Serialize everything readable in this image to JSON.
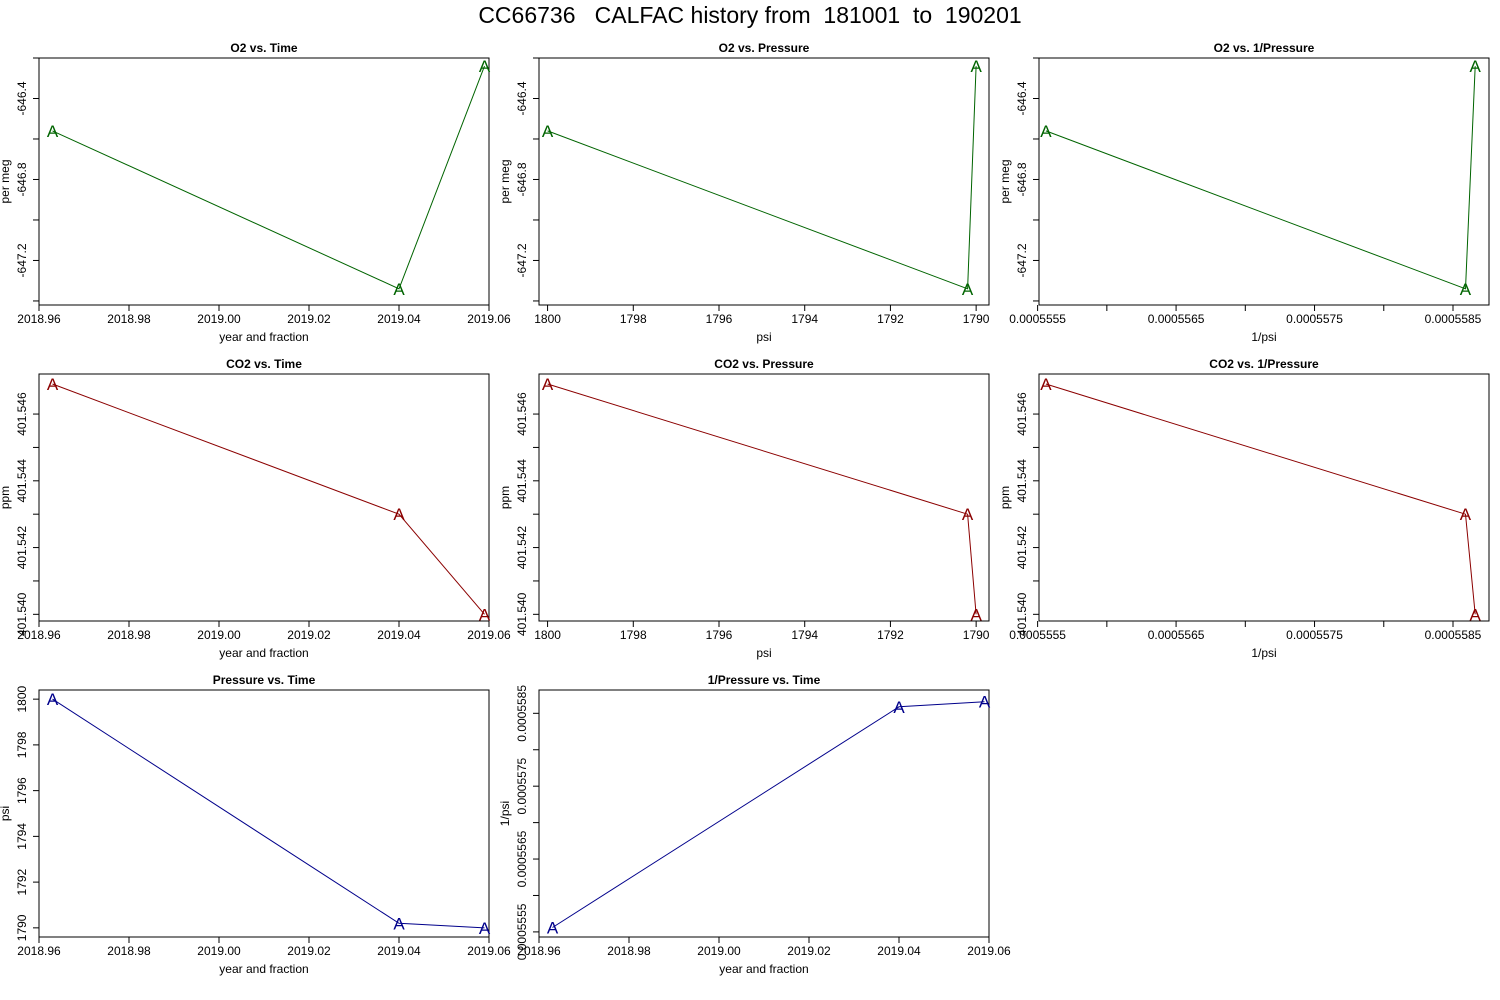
{
  "page": {
    "title": "CC66736   CALFAC history from  181001  to  190201"
  },
  "colors": {
    "o2": "#006400",
    "co2": "#8b0000",
    "pressure": "#00008b",
    "axis": "#000000"
  },
  "chart_data": [
    {
      "type": "line",
      "marker": "A",
      "color": "#006400",
      "title": "O2 vs. Time",
      "xlabel": "year and fraction",
      "ylabel": "per meg",
      "x": [
        2018.963,
        2019.04,
        2019.059
      ],
      "y": [
        -646.56,
        -647.34,
        -646.24
      ],
      "xlim": [
        2018.96,
        2019.06
      ],
      "ylim": [
        -647.42,
        -646.2
      ],
      "xticks": [
        2018.96,
        2018.98,
        2019.0,
        2019.02,
        2019.04,
        2019.06
      ],
      "xticklabels": [
        "2018.96",
        "2018.98",
        "2019.00",
        "2019.02",
        "2019.04",
        "2019.06"
      ],
      "yticks": [
        -647.4,
        -647.2,
        -647.0,
        -646.8,
        -646.6,
        -646.4,
        -646.2
      ],
      "yticklabels": [
        "",
        "-647.2",
        "",
        "-646.8",
        "",
        "-646.4",
        ""
      ]
    },
    {
      "type": "line",
      "marker": "A",
      "color": "#006400",
      "title": "O2 vs. Pressure",
      "xlabel": "psi",
      "ylabel": "per meg",
      "x": [
        1800,
        1790.2,
        1790
      ],
      "y": [
        -646.56,
        -647.34,
        -646.24
      ],
      "xlim": [
        1800.2,
        1789.7
      ],
      "ylim": [
        -647.42,
        -646.2
      ],
      "xticks": [
        1800,
        1798,
        1796,
        1794,
        1792,
        1790
      ],
      "xticklabels": [
        "1800",
        "1798",
        "1796",
        "1794",
        "1792",
        "1790"
      ],
      "yticks": [
        -647.4,
        -647.2,
        -647.0,
        -646.8,
        -646.6,
        -646.4,
        -646.2
      ],
      "yticklabels": [
        "",
        "-647.2",
        "",
        "-646.8",
        "",
        "-646.4",
        ""
      ]
    },
    {
      "type": "line",
      "marker": "A",
      "color": "#006400",
      "title": "O2 vs. 1/Pressure",
      "xlabel": "1/psi",
      "ylabel": "per meg",
      "x": [
        0.00055556,
        0.00055859,
        0.00055866
      ],
      "y": [
        -646.56,
        -647.34,
        -646.24
      ],
      "xlim": [
        0.00055551,
        0.00055876
      ],
      "ylim": [
        -647.42,
        -646.2
      ],
      "xticks": [
        0.0005555,
        0.000556,
        0.0005565,
        0.000557,
        0.0005575,
        0.000558,
        0.0005585
      ],
      "xticklabels": [
        "0.0005555",
        "",
        "0.0005565",
        "",
        "0.0005575",
        "",
        "0.0005585"
      ],
      "yticks": [
        -647.4,
        -647.2,
        -647.0,
        -646.8,
        -646.6,
        -646.4,
        -646.2
      ],
      "yticklabels": [
        "",
        "-647.2",
        "",
        "-646.8",
        "",
        "-646.4",
        ""
      ]
    },
    {
      "type": "line",
      "marker": "A",
      "color": "#8b0000",
      "title": "CO2 vs. Time",
      "xlabel": "year and fraction",
      "ylabel": "ppm",
      "x": [
        2018.963,
        2019.04,
        2019.059
      ],
      "y": [
        401.5469,
        401.543,
        401.54
      ],
      "xlim": [
        2018.96,
        2019.06
      ],
      "ylim": [
        401.5398,
        401.5472
      ],
      "xticks": [
        2018.96,
        2018.98,
        2019.0,
        2019.02,
        2019.04,
        2019.06
      ],
      "xticklabels": [
        "2018.96",
        "2018.98",
        "2019.00",
        "2019.02",
        "2019.04",
        "2019.06"
      ],
      "yticks": [
        401.54,
        401.541,
        401.542,
        401.543,
        401.544,
        401.545,
        401.546
      ],
      "yticklabels": [
        "401.540",
        "",
        "401.542",
        "",
        "401.544",
        "",
        "401.546"
      ]
    },
    {
      "type": "line",
      "marker": "A",
      "color": "#8b0000",
      "title": "CO2 vs. Pressure",
      "xlabel": "psi",
      "ylabel": "ppm",
      "x": [
        1800,
        1790.2,
        1790
      ],
      "y": [
        401.5469,
        401.543,
        401.54
      ],
      "xlim": [
        1800.2,
        1789.7
      ],
      "ylim": [
        401.5398,
        401.5472
      ],
      "xticks": [
        1800,
        1798,
        1796,
        1794,
        1792,
        1790
      ],
      "xticklabels": [
        "1800",
        "1798",
        "1796",
        "1794",
        "1792",
        "1790"
      ],
      "yticks": [
        401.54,
        401.541,
        401.542,
        401.543,
        401.544,
        401.545,
        401.546
      ],
      "yticklabels": [
        "401.540",
        "",
        "401.542",
        "",
        "401.544",
        "",
        "401.546"
      ]
    },
    {
      "type": "line",
      "marker": "A",
      "color": "#8b0000",
      "title": "CO2 vs. 1/Pressure",
      "xlabel": "1/psi",
      "ylabel": "ppm",
      "x": [
        0.00055556,
        0.00055859,
        0.00055866
      ],
      "y": [
        401.5469,
        401.543,
        401.54
      ],
      "xlim": [
        0.00055551,
        0.00055876
      ],
      "ylim": [
        401.5398,
        401.5472
      ],
      "xticks": [
        0.0005555,
        0.000556,
        0.0005565,
        0.000557,
        0.0005575,
        0.000558,
        0.0005585
      ],
      "xticklabels": [
        "0.0005555",
        "",
        "0.0005565",
        "",
        "0.0005575",
        "",
        "0.0005585"
      ],
      "yticks": [
        401.54,
        401.541,
        401.542,
        401.543,
        401.544,
        401.545,
        401.546
      ],
      "yticklabels": [
        "401.540",
        "",
        "401.542",
        "",
        "401.544",
        "",
        "401.546"
      ]
    },
    {
      "type": "line",
      "marker": "A",
      "color": "#00008b",
      "title": "Pressure vs. Time",
      "xlabel": "year and fraction",
      "ylabel": "psi",
      "x": [
        2018.963,
        2019.04,
        2019.059
      ],
      "y": [
        1800,
        1790.2,
        1790
      ],
      "xlim": [
        2018.96,
        2019.06
      ],
      "ylim": [
        1789.6,
        1800.4
      ],
      "xticks": [
        2018.96,
        2018.98,
        2019.0,
        2019.02,
        2019.04,
        2019.06
      ],
      "xticklabels": [
        "2018.96",
        "2018.98",
        "2019.00",
        "2019.02",
        "2019.04",
        "2019.06"
      ],
      "yticks": [
        1790,
        1792,
        1794,
        1796,
        1798,
        1800
      ],
      "yticklabels": [
        "1790",
        "1792",
        "1794",
        "1796",
        "1798",
        "1800"
      ]
    },
    {
      "type": "line",
      "marker": "A",
      "color": "#00008b",
      "title": "1/Pressure vs. Time",
      "xlabel": "year and fraction",
      "ylabel": "1/psi",
      "x": [
        2018.963,
        2019.04,
        2019.059
      ],
      "y": [
        0.00055556,
        0.00055859,
        0.00055866
      ],
      "xlim": [
        2018.96,
        2019.06
      ],
      "ylim": [
        0.00055543,
        0.00055882
      ],
      "xticks": [
        2018.96,
        2018.98,
        2019.0,
        2019.02,
        2019.04,
        2019.06
      ],
      "xticklabels": [
        "2018.96",
        "2018.98",
        "2019.00",
        "2019.02",
        "2019.04",
        "2019.06"
      ],
      "yticks": [
        0.0005555,
        0.000556,
        0.0005565,
        0.000557,
        0.0005575,
        0.000558,
        0.0005585
      ],
      "yticklabels": [
        "0.0005555",
        "",
        "0.0005565",
        "",
        "0.0005575",
        "",
        "0.0005585"
      ]
    }
  ]
}
